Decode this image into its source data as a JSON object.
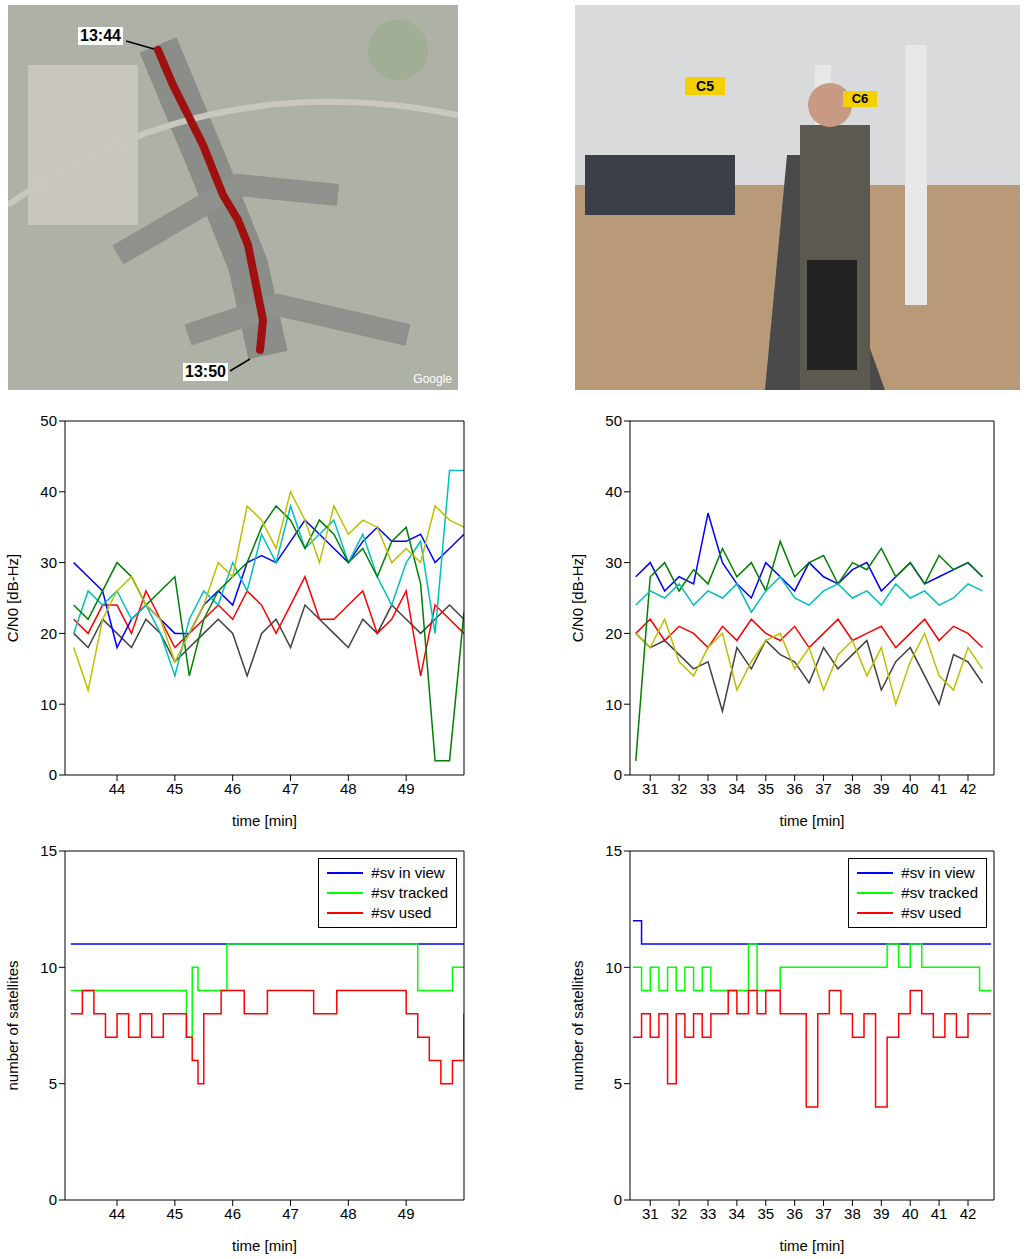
{
  "images": [
    {
      "labels": [
        "13:44",
        "13:50",
        "Google"
      ]
    },
    {
      "labels": [
        "C5",
        "C6"
      ]
    }
  ],
  "chart_data": [
    {
      "type": "line",
      "xlabel": "time [min]",
      "ylabel": "C/N0 [dB-Hz]",
      "xlim": [
        43.1,
        50
      ],
      "xticks": [
        44,
        45,
        46,
        47,
        48,
        49
      ],
      "ylim": [
        0,
        50
      ],
      "yticks": [
        0,
        10,
        20,
        30,
        40,
        50
      ],
      "grid": false,
      "x": [
        43.25,
        43.5,
        43.75,
        44,
        44.25,
        44.5,
        44.75,
        45,
        45.25,
        45.5,
        45.75,
        46,
        46.25,
        46.5,
        46.75,
        47,
        47.25,
        47.5,
        47.75,
        48,
        48.25,
        48.5,
        48.75,
        49,
        49.25,
        49.5,
        49.75,
        50
      ],
      "series": [
        {
          "color": "#404040",
          "values": [
            20,
            18,
            22,
            20,
            18,
            22,
            20,
            16,
            18,
            20,
            22,
            20,
            14,
            20,
            22,
            18,
            24,
            22,
            20,
            18,
            22,
            20,
            24,
            22,
            20,
            22,
            24,
            22
          ]
        },
        {
          "color": "#ff0000",
          "values": [
            22,
            20,
            24,
            24,
            20,
            26,
            22,
            18,
            20,
            22,
            24,
            22,
            26,
            24,
            20,
            24,
            28,
            22,
            22,
            24,
            26,
            20,
            22,
            26,
            14,
            24,
            22,
            20
          ]
        },
        {
          "color": "#0000ff",
          "values": [
            30,
            28,
            26,
            18,
            22,
            24,
            22,
            20,
            20,
            24,
            26,
            24,
            30,
            31,
            30,
            33,
            36,
            34,
            32,
            30,
            33,
            35,
            33,
            33,
            34,
            30,
            32,
            34
          ]
        },
        {
          "color": "#00bfbf",
          "values": [
            20,
            26,
            24,
            26,
            22,
            24,
            20,
            14,
            22,
            26,
            24,
            30,
            26,
            34,
            30,
            38,
            32,
            34,
            36,
            30,
            34,
            28,
            24,
            30,
            33,
            20,
            43,
            43
          ]
        },
        {
          "color": "#008000",
          "values": [
            24,
            22,
            26,
            30,
            28,
            24,
            26,
            28,
            14,
            22,
            26,
            28,
            30,
            35,
            38,
            36,
            32,
            36,
            34,
            30,
            32,
            28,
            33,
            35,
            27,
            2,
            2,
            23
          ]
        },
        {
          "color": "#bfbf00",
          "values": [
            18,
            12,
            22,
            26,
            28,
            24,
            22,
            16,
            20,
            24,
            30,
            28,
            38,
            36,
            32,
            40,
            36,
            30,
            38,
            34,
            36,
            35,
            30,
            32,
            30,
            38,
            36,
            35
          ]
        }
      ]
    },
    {
      "type": "line",
      "xlabel": "time [min]",
      "ylabel": "C/N0 [dB-Hz]",
      "xlim": [
        30.3,
        42.9
      ],
      "xticks": [
        31,
        32,
        33,
        34,
        35,
        36,
        37,
        38,
        39,
        40,
        41,
        42
      ],
      "ylim": [
        0,
        50
      ],
      "yticks": [
        0,
        10,
        20,
        30,
        40,
        50
      ],
      "grid": false,
      "x": [
        30.5,
        31,
        31.5,
        32,
        32.5,
        33,
        33.5,
        34,
        34.5,
        35,
        35.5,
        36,
        36.5,
        37,
        37.5,
        38,
        38.5,
        39,
        39.5,
        40,
        40.5,
        41,
        41.5,
        42,
        42.5
      ],
      "series": [
        {
          "color": "#404040",
          "values": [
            20,
            18,
            19,
            17,
            15,
            16,
            9,
            18,
            15,
            19,
            17,
            16,
            13,
            18,
            15,
            17,
            19,
            12,
            16,
            18,
            14,
            10,
            17,
            16,
            13
          ]
        },
        {
          "color": "#ff0000",
          "values": [
            20,
            22,
            19,
            21,
            20,
            18,
            21,
            19,
            22,
            20,
            19,
            21,
            18,
            20,
            22,
            19,
            20,
            21,
            18,
            20,
            22,
            19,
            21,
            20,
            18
          ]
        },
        {
          "color": "#bfbf00",
          "values": [
            20,
            18,
            22,
            16,
            14,
            18,
            20,
            12,
            16,
            19,
            20,
            15,
            18,
            12,
            17,
            19,
            14,
            18,
            10,
            16,
            20,
            14,
            12,
            18,
            15
          ]
        },
        {
          "color": "#0000ff",
          "values": [
            28,
            30,
            26,
            28,
            27,
            37,
            30,
            27,
            25,
            30,
            28,
            26,
            30,
            28,
            27,
            29,
            30,
            26,
            28,
            30,
            27,
            28,
            29,
            30,
            28
          ]
        },
        {
          "color": "#008000",
          "values": [
            2,
            28,
            30,
            26,
            29,
            27,
            32,
            28,
            30,
            26,
            33,
            28,
            30,
            31,
            27,
            30,
            29,
            32,
            28,
            30,
            27,
            31,
            29,
            30,
            28
          ]
        },
        {
          "color": "#00bfbf",
          "values": [
            24,
            26,
            25,
            27,
            24,
            26,
            25,
            27,
            23,
            26,
            28,
            25,
            24,
            26,
            27,
            25,
            26,
            24,
            27,
            25,
            26,
            24,
            25,
            27,
            26
          ]
        }
      ]
    },
    {
      "type": "line",
      "line_style": "steps",
      "legend": "upper right",
      "xlabel": "time [min]",
      "ylabel": "number of satellites",
      "xlim": [
        43.1,
        50
      ],
      "xticks": [
        44,
        45,
        46,
        47,
        48,
        49
      ],
      "ylim": [
        0,
        15
      ],
      "yticks": [
        0,
        5,
        10,
        15
      ],
      "grid": false,
      "x": [
        43.2,
        43.4,
        43.6,
        43.8,
        44.0,
        44.2,
        44.4,
        44.6,
        44.8,
        45.0,
        45.2,
        45.3,
        45.4,
        45.5,
        45.6,
        45.8,
        45.9,
        46.2,
        46.6,
        47.0,
        47.4,
        47.8,
        48.2,
        48.6,
        49.0,
        49.2,
        49.4,
        49.6,
        49.8,
        50.0
      ],
      "series": [
        {
          "name": "#sv in view",
          "color": "#0000ff",
          "values": [
            11,
            11,
            11,
            11,
            11,
            11,
            11,
            11,
            11,
            11,
            11,
            11,
            11,
            11,
            11,
            11,
            11,
            11,
            11,
            11,
            11,
            11,
            11,
            11,
            11,
            11,
            11,
            11,
            11,
            11
          ]
        },
        {
          "name": "#sv tracked",
          "color": "#00ff00",
          "values": [
            9,
            9,
            9,
            9,
            9,
            9,
            9,
            9,
            9,
            9,
            7,
            10,
            9,
            9,
            9,
            9,
            11,
            11,
            11,
            11,
            11,
            11,
            11,
            11,
            11,
            9,
            9,
            9,
            10,
            10
          ]
        },
        {
          "name": "#sv used",
          "color": "#ff0000",
          "values": [
            8,
            9,
            8,
            7,
            8,
            7,
            8,
            7,
            8,
            8,
            7,
            6,
            5,
            8,
            8,
            9,
            9,
            8,
            9,
            9,
            8,
            9,
            9,
            9,
            8,
            7,
            6,
            5,
            6,
            8
          ]
        }
      ]
    },
    {
      "type": "line",
      "line_style": "steps",
      "legend": "upper right",
      "xlabel": "time [min]",
      "ylabel": "number of satellites",
      "xlim": [
        30.3,
        42.9
      ],
      "xticks": [
        31,
        32,
        33,
        34,
        35,
        36,
        37,
        38,
        39,
        40,
        41,
        42
      ],
      "ylim": [
        0,
        15
      ],
      "yticks": [
        0,
        5,
        10,
        15
      ],
      "grid": false,
      "x": [
        30.4,
        30.7,
        31.0,
        31.3,
        31.6,
        31.9,
        32.2,
        32.5,
        32.8,
        33.1,
        33.4,
        33.7,
        34.0,
        34.4,
        34.7,
        35.0,
        35.5,
        36.0,
        36.4,
        36.8,
        37.2,
        37.6,
        38.0,
        38.4,
        38.8,
        39.2,
        39.6,
        40.0,
        40.4,
        40.8,
        41.2,
        41.6,
        42.0,
        42.4,
        42.8
      ],
      "series": [
        {
          "name": "#sv in view",
          "color": "#0000ff",
          "values": [
            12,
            11,
            11,
            11,
            11,
            11,
            11,
            11,
            11,
            11,
            11,
            11,
            11,
            11,
            11,
            11,
            11,
            11,
            11,
            11,
            11,
            11,
            11,
            11,
            11,
            11,
            11,
            11,
            11,
            11,
            11,
            11,
            11,
            11,
            11
          ]
        },
        {
          "name": "#sv tracked",
          "color": "#00ff00",
          "values": [
            10,
            9,
            10,
            9,
            10,
            9,
            10,
            9,
            10,
            9,
            9,
            9,
            9,
            11,
            9,
            9,
            10,
            10,
            10,
            10,
            10,
            10,
            10,
            10,
            10,
            11,
            10,
            11,
            10,
            10,
            10,
            10,
            10,
            9,
            9
          ]
        },
        {
          "name": "#sv used",
          "color": "#ff0000",
          "values": [
            7,
            8,
            7,
            8,
            5,
            8,
            7,
            8,
            7,
            8,
            8,
            9,
            8,
            9,
            8,
            9,
            8,
            8,
            4,
            8,
            9,
            8,
            7,
            8,
            4,
            7,
            8,
            9,
            8,
            7,
            8,
            7,
            8,
            8,
            8
          ]
        }
      ]
    }
  ]
}
